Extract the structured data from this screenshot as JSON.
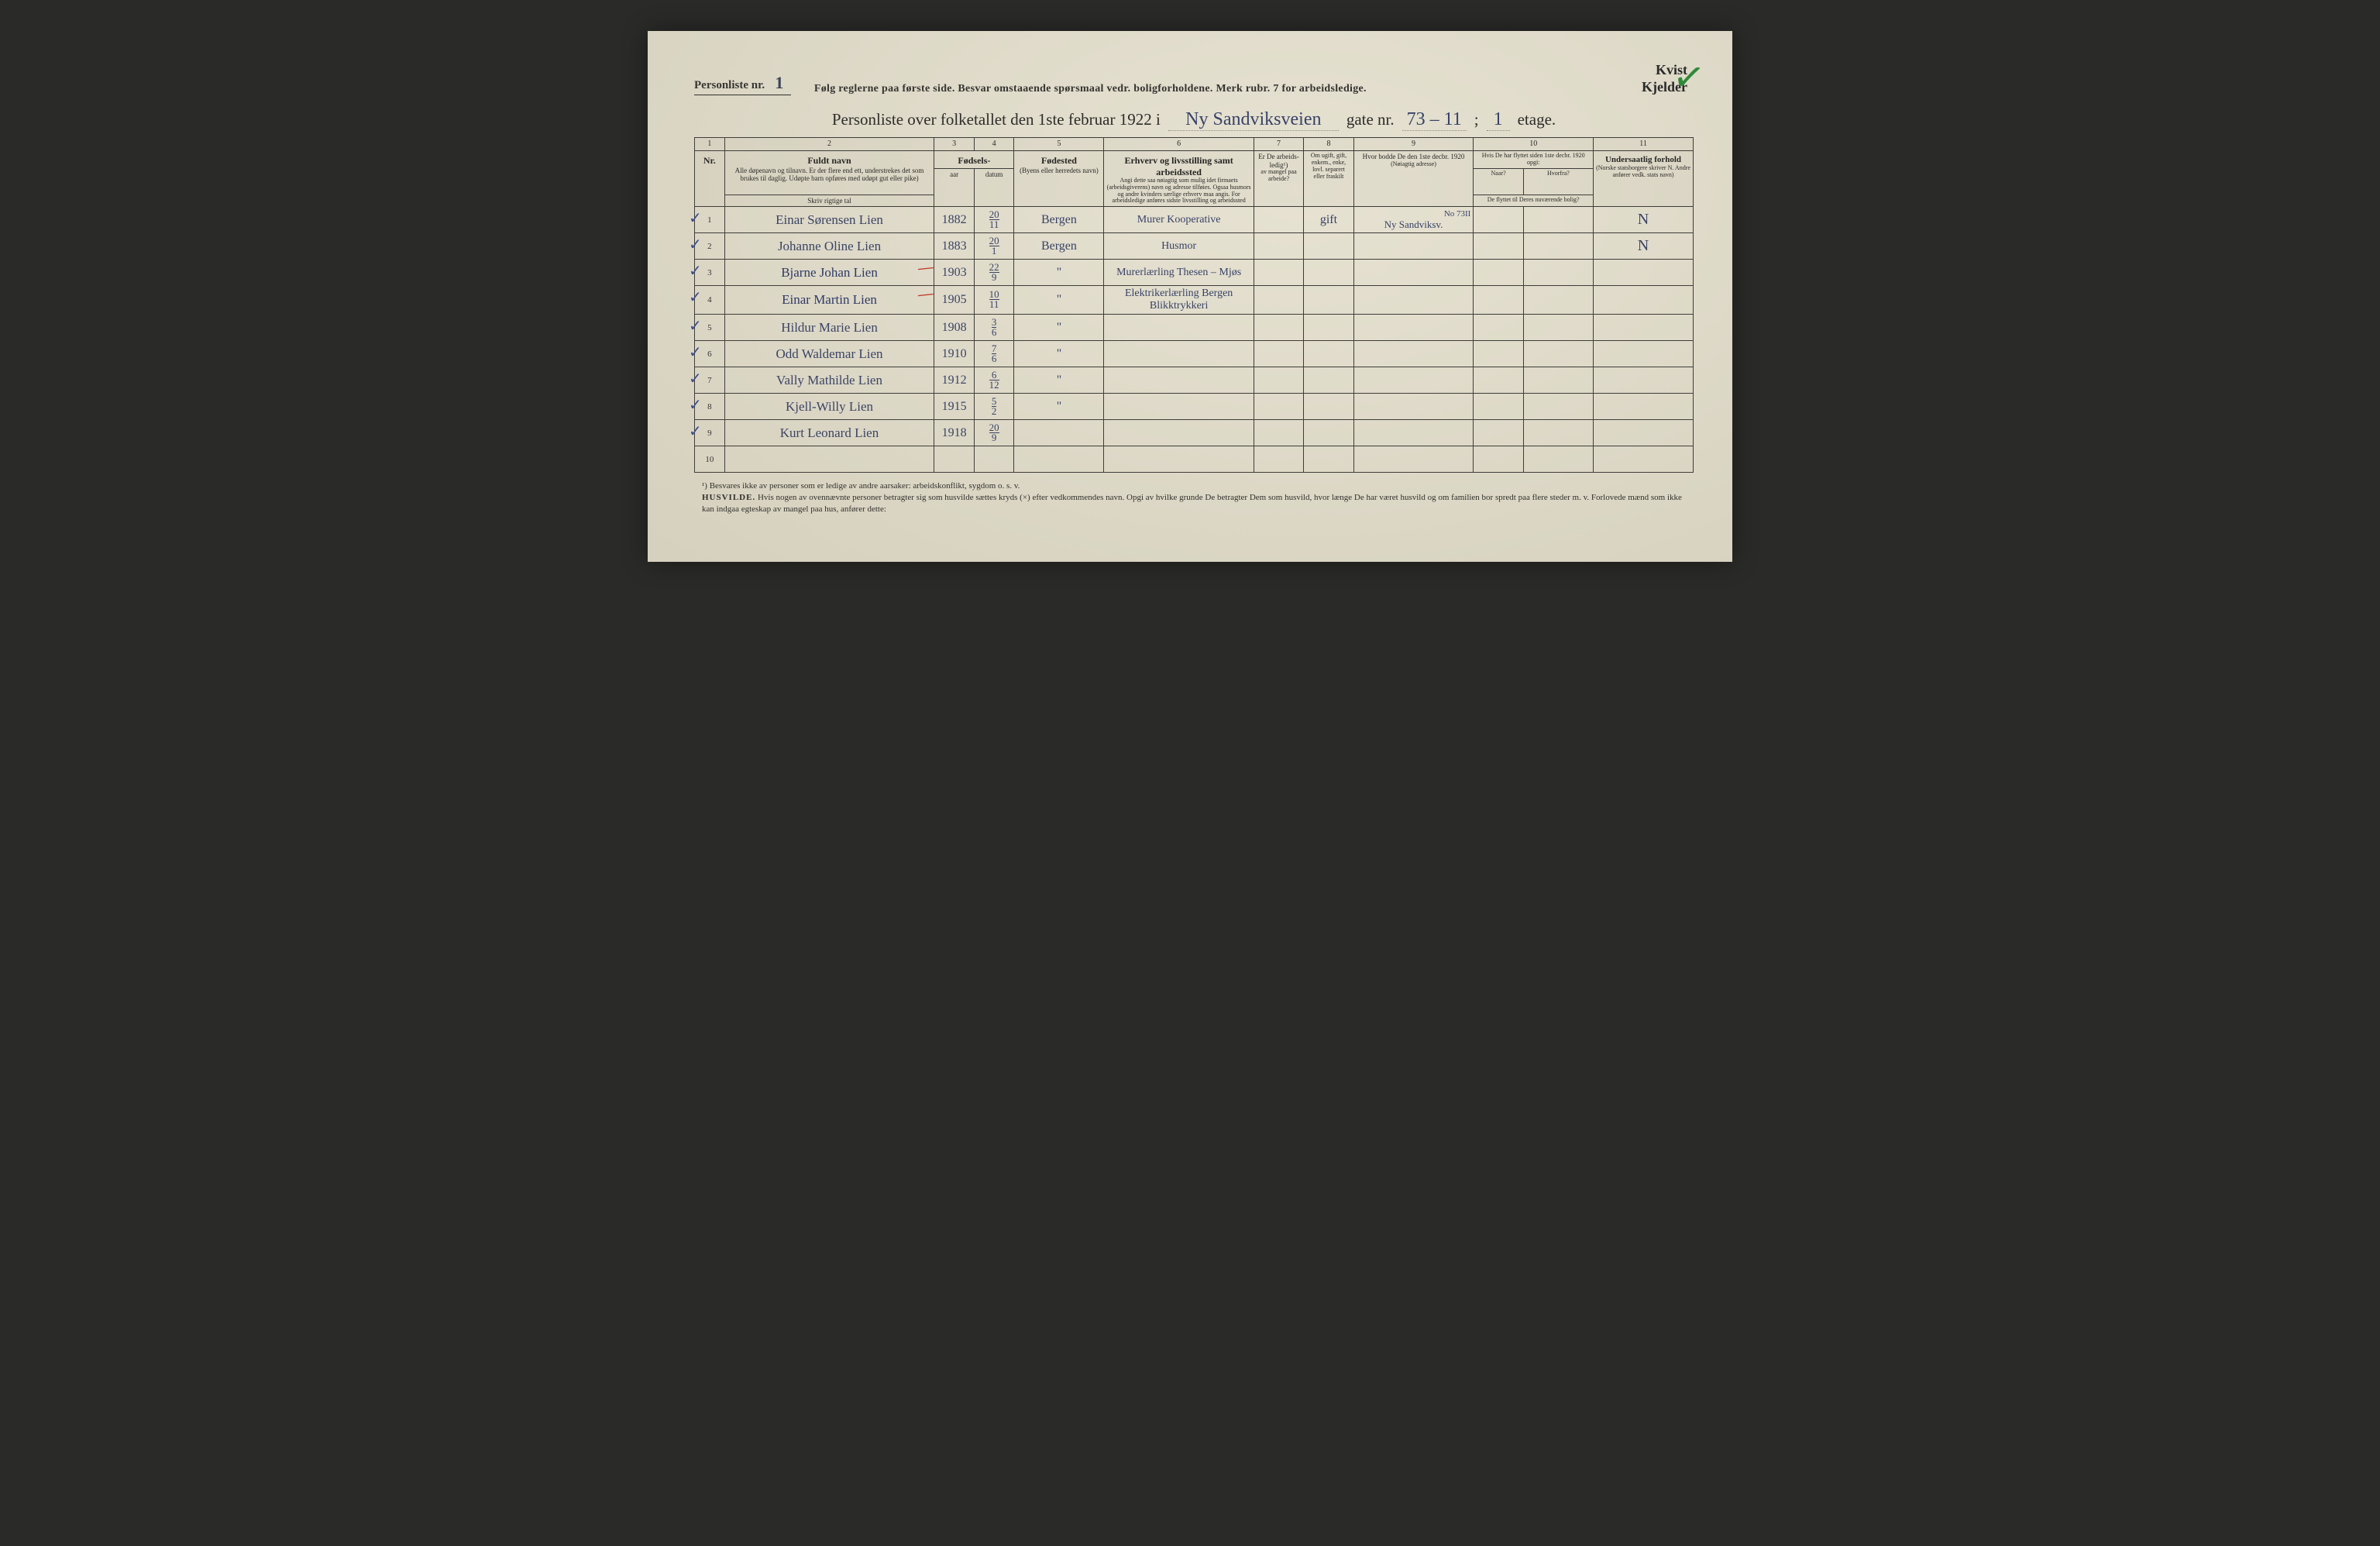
{
  "header": {
    "personliste_label": "Personliste nr.",
    "personliste_value": "1",
    "instructions": "Følg reglerne paa første side.   Besvar omstaaende spørsmaal vedr. boligforholdene.   Merk rubr. 7 for arbeidsledige.",
    "kvist": "Kvist",
    "kjelder": "Kjelder"
  },
  "title": {
    "prefix": "Personliste over folketallet den 1ste februar 1922 i",
    "street": "Ny Sandviksveien",
    "gate_label": "gate nr.",
    "gate_value": "73 – 11",
    "semicolon": ";",
    "etage_value": "1",
    "etage_label": "etage."
  },
  "columns": {
    "c1": "1",
    "c2": "2",
    "c3": "3",
    "c4": "4",
    "c5": "5",
    "c6": "6",
    "c7": "7",
    "c8": "8",
    "c9": "9",
    "c10": "10",
    "c11": "11",
    "nr": "Nr.",
    "navn_main": "Fuldt navn",
    "navn_sub": "Alle døpenavn og tilnavn. Er der flere end ett, understrekes det som brukes til daglig. Udøpte barn opføres med udøpt gut eller pike)",
    "navn_bottom": "Skriv rigtige tal",
    "fodsels": "Fødsels-",
    "aar": "aar",
    "datum": "datum",
    "fodested_main": "Fødested",
    "fodested_sub": "(Byens eller herredets navn)",
    "erhverv_main": "Erhverv og livsstilling samt arbeidssted",
    "erhverv_sub": "Angi dette saa nøiagtig som mulig idet firmaets (arbeidsgiverens) navn og adresse tilføies. Ogsaa husmors og andre kvinders særlige erhverv maa angis. For arbeidsledige anføres sidste livsstilling og arbeidssted",
    "ledig_main": "Er De arbeids-ledig¹)",
    "ledig_sub": "av mangel paa arbeide?",
    "ugift_main": "Om ugift, gift, enkem., enke, lovl. separert eller fraskilt",
    "bodde_main": "Hvor bodde De den 1ste decbr. 1920",
    "bodde_sub": "(Nøiagtig adresse)",
    "flyttet_main": "Hvis De har flyttet siden 1ste decbr. 1920 opgi:",
    "naar": "Naar?",
    "hvorfra": "Hvorfra?",
    "flyttet_sub": "De flyttet til Deres nuværende bolig?",
    "undersaat_main": "Undersaatlig forhold",
    "undersaat_sub": "(Norske statsborgere skriver N. Andre anfører vedk. stats navn)"
  },
  "rows": [
    {
      "nr": "1",
      "navn": "Einar Sørensen Lien",
      "aar": "1882",
      "dag": "20",
      "mnd": "11",
      "fodested": "Bergen",
      "erhverv": "Murer Kooperative",
      "ugift": "gift",
      "bodde_top": "No 73II",
      "bodde": "Ny Sandviksv.",
      "undersaat": "N"
    },
    {
      "nr": "2",
      "navn": "Johanne Oline Lien",
      "aar": "1883",
      "dag": "20",
      "mnd": "1",
      "fodested": "Bergen",
      "erhverv": "Husmor",
      "ugift": "",
      "bodde_top": "",
      "bodde": "",
      "undersaat": "N"
    },
    {
      "nr": "3",
      "navn": "Bjarne Johan Lien",
      "aar": "1903",
      "dag": "22",
      "mnd": "9",
      "fodested": "\"",
      "erhverv": "Murerlærling  Thesen – Mjøs",
      "ugift": "",
      "bodde_top": "",
      "bodde": "",
      "undersaat": ""
    },
    {
      "nr": "4",
      "navn": "Einar Martin Lien",
      "aar": "1905",
      "dag": "10",
      "mnd": "11",
      "fodested": "\"",
      "erhverv": "Elektrikerlærling  Bergen Blikktrykkeri",
      "ugift": "",
      "bodde_top": "",
      "bodde": "",
      "undersaat": ""
    },
    {
      "nr": "5",
      "navn": "Hildur Marie Lien",
      "aar": "1908",
      "dag": "3",
      "mnd": "6",
      "fodested": "\"",
      "erhverv": "",
      "ugift": "",
      "bodde_top": "",
      "bodde": "",
      "undersaat": ""
    },
    {
      "nr": "6",
      "navn": "Odd Waldemar Lien",
      "aar": "1910",
      "dag": "7",
      "mnd": "6",
      "fodested": "\"",
      "erhverv": "",
      "ugift": "",
      "bodde_top": "",
      "bodde": "",
      "undersaat": ""
    },
    {
      "nr": "7",
      "navn": "Vally Mathilde Lien",
      "aar": "1912",
      "dag": "6",
      "mnd": "12",
      "fodested": "\"",
      "erhverv": "",
      "ugift": "",
      "bodde_top": "",
      "bodde": "",
      "undersaat": ""
    },
    {
      "nr": "8",
      "navn": "Kjell-Willy Lien",
      "aar": "1915",
      "dag": "5",
      "mnd": "2",
      "fodested": "\"",
      "erhverv": "",
      "ugift": "",
      "bodde_top": "",
      "bodde": "",
      "undersaat": ""
    },
    {
      "nr": "9",
      "navn": "Kurt Leonard Lien",
      "aar": "1918",
      "dag": "20",
      "mnd": "9",
      "fodested": "",
      "erhverv": "",
      "ugift": "",
      "bodde_top": "",
      "bodde": "",
      "undersaat": ""
    },
    {
      "nr": "10",
      "navn": "",
      "aar": "",
      "dag": "",
      "mnd": "",
      "fodested": "",
      "erhverv": "",
      "ugift": "",
      "bodde_top": "",
      "bodde": "",
      "undersaat": ""
    }
  ],
  "footnote": {
    "line1": "¹) Besvares ikke av personer som er ledige av andre aarsaker: arbeidskonflikt, sygdom o. s. v.",
    "bold": "HUSVILDE.",
    "line2": " Hvis nogen av ovennævnte personer betragter sig som husvilde sættes kryds (×) efter vedkommendes navn.  Opgi av hvilke grunde De betragter Dem som husvild, hvor længe De har været husvild og om familien bor spredt paa flere steder m. v.  Forlovede mænd som ikke kan indgaa egteskap av mangel paa hus, anfører dette:"
  },
  "style": {
    "paper_bg": "#e8e4d4",
    "ink": "#1a1a1a",
    "handwriting": "#2e3a65",
    "green_check": "#2d8a3a",
    "red_mark": "#c03a2a",
    "border": "#333333"
  }
}
